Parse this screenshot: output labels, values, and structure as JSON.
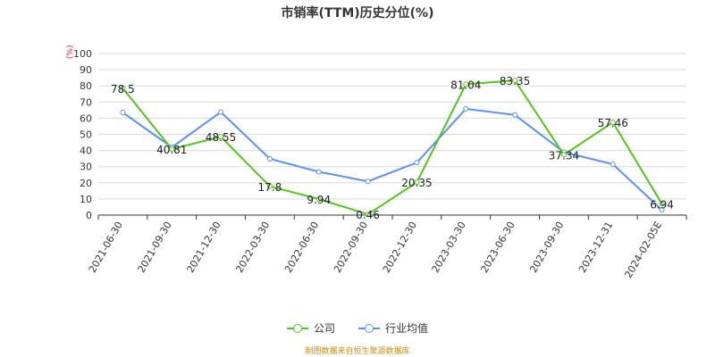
{
  "chart_data": {
    "type": "line",
    "title": "市销率(TTM)历史分位(%)",
    "ylabel": "(%)",
    "xlabel": "",
    "categories": [
      "2021-06-30",
      "2021-09-30",
      "2021-12-30",
      "2022-03-30",
      "2022-06-30",
      "2022-09-30",
      "2022-12-30",
      "2023-03-30",
      "2023-06-30",
      "2023-09-30",
      "2023-12-31",
      "2024-02-05E"
    ],
    "ylim": [
      0,
      100
    ],
    "yticks": [
      0,
      10,
      20,
      30,
      40,
      50,
      60,
      70,
      80,
      90,
      100
    ],
    "grid": true,
    "legend_position": "bottom-center",
    "series": [
      {
        "name": "公司",
        "color": "#52c41a",
        "labels": true,
        "values": [
          78.5,
          40.81,
          48.55,
          17.8,
          9.94,
          0.46,
          20.35,
          81.04,
          83.35,
          37.34,
          57.46,
          6.94
        ]
      },
      {
        "name": "行业均值",
        "color": "#5b8ff9",
        "labels": false,
        "values": [
          63.5,
          42,
          63.8,
          34.8,
          26.8,
          20.9,
          32.5,
          65.8,
          62,
          39,
          31.5,
          3.2
        ]
      }
    ]
  },
  "legend": {
    "company_label": "公司",
    "industry_label": "行业均值"
  },
  "source_text": "制图数据来自恒生聚源数据库"
}
